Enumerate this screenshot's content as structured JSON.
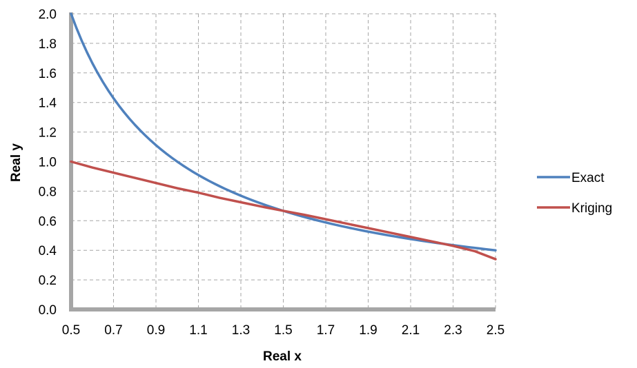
{
  "chart_data": {
    "type": "line",
    "title": "",
    "xlabel": "Real x",
    "ylabel": "Real y",
    "xlim": [
      0.5,
      2.5
    ],
    "ylim": [
      0.0,
      2.0
    ],
    "grid": true,
    "legend_position": "right",
    "x_ticks": [
      "0.5",
      "0.7",
      "0.9",
      "1.1",
      "1.3",
      "1.5",
      "1.7",
      "1.9",
      "2.1",
      "2.3",
      "2.5"
    ],
    "y_ticks": [
      "0.0",
      "0.2",
      "0.4",
      "0.6",
      "0.8",
      "1.0",
      "1.2",
      "1.4",
      "1.6",
      "1.8",
      "2.0"
    ],
    "x": [
      0.5,
      0.6,
      0.7,
      0.8,
      0.9,
      1.0,
      1.1,
      1.2,
      1.3,
      1.4,
      1.5,
      1.6,
      1.7,
      1.8,
      1.9,
      2.0,
      2.1,
      2.2,
      2.3,
      2.4,
      2.5
    ],
    "series": [
      {
        "name": "Exact",
        "color": "#4f81bd",
        "values": [
          2.0,
          1.667,
          1.429,
          1.25,
          1.111,
          1.0,
          0.909,
          0.833,
          0.769,
          0.714,
          0.667,
          0.625,
          0.588,
          0.556,
          0.526,
          0.5,
          0.476,
          0.455,
          0.435,
          0.417,
          0.4
        ]
      },
      {
        "name": "Kriging",
        "color": "#c0504d",
        "values": [
          1.0,
          0.96,
          0.925,
          0.89,
          0.855,
          0.82,
          0.79,
          0.755,
          0.725,
          0.695,
          0.667,
          0.64,
          0.61,
          0.58,
          0.55,
          0.52,
          0.49,
          0.46,
          0.43,
          0.395,
          0.34
        ]
      }
    ]
  }
}
